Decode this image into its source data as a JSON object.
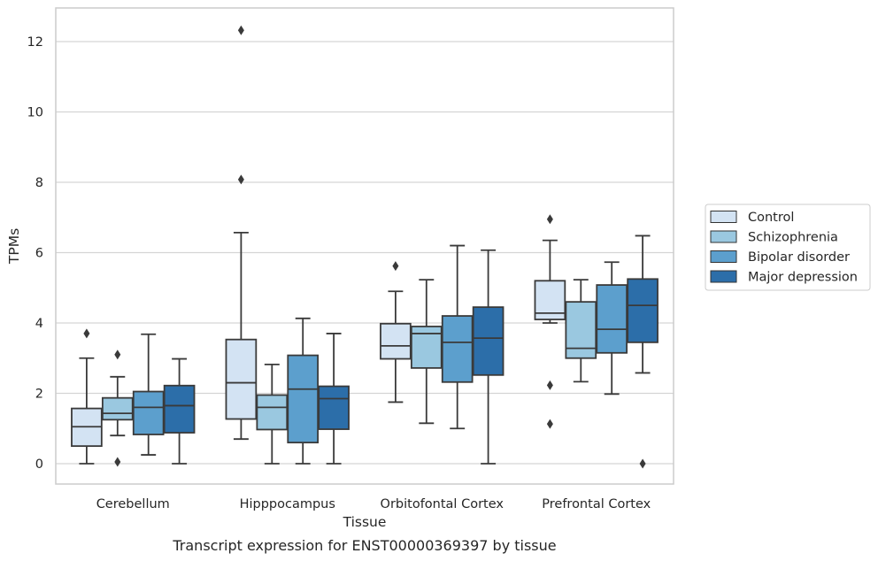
{
  "chart_data": {
    "type": "box",
    "caption": "Transcript expression for ENST00000369397 by tissue",
    "xlabel": "Tissue",
    "ylabel": "TPMs",
    "ylim": [
      -0.6,
      12.95
    ],
    "yticks": [
      0,
      2,
      4,
      6,
      8,
      10,
      12
    ],
    "grid": "horizontal",
    "legend_placement": "right",
    "categories": [
      "Cerebellum",
      "Hipppocampus",
      "Orbitofontal Cortex",
      "Prefrontal Cortex"
    ],
    "series": [
      {
        "name": "Control",
        "color": "#d3e3f3",
        "boxes": [
          {
            "whislo": 0.0,
            "q1": 0.5,
            "med": 1.05,
            "q3": 1.57,
            "whishi": 3.0,
            "fliers": [
              3.7
            ]
          },
          {
            "whislo": 0.7,
            "q1": 1.27,
            "med": 2.3,
            "q3": 3.53,
            "whishi": 6.57,
            "fliers": [
              8.08,
              12.32
            ]
          },
          {
            "whislo": 1.75,
            "q1": 2.98,
            "med": 3.35,
            "q3": 3.98,
            "whishi": 4.9,
            "fliers": [
              5.62
            ]
          },
          {
            "whislo": 4.0,
            "q1": 4.1,
            "med": 4.28,
            "q3": 5.2,
            "whishi": 6.35,
            "fliers": [
              6.95,
              2.23,
              1.13
            ]
          }
        ]
      },
      {
        "name": "Schizophrenia",
        "color": "#9ac8e0",
        "boxes": [
          {
            "whislo": 0.8,
            "q1": 1.25,
            "med": 1.43,
            "q3": 1.87,
            "whishi": 2.47,
            "fliers": [
              3.1,
              0.05
            ]
          },
          {
            "whislo": 0.0,
            "q1": 0.97,
            "med": 1.6,
            "q3": 1.95,
            "whishi": 2.82,
            "fliers": []
          },
          {
            "whislo": 1.15,
            "q1": 2.72,
            "med": 3.7,
            "q3": 3.9,
            "whishi": 5.23,
            "fliers": []
          },
          {
            "whislo": 2.33,
            "q1": 3.0,
            "med": 3.28,
            "q3": 4.6,
            "whishi": 5.23,
            "fliers": []
          }
        ]
      },
      {
        "name": "Bipolar disorder",
        "color": "#5c9fcd",
        "boxes": [
          {
            "whislo": 0.25,
            "q1": 0.83,
            "med": 1.6,
            "q3": 2.05,
            "whishi": 3.68,
            "fliers": []
          },
          {
            "whislo": 0.0,
            "q1": 0.6,
            "med": 2.12,
            "q3": 3.08,
            "whishi": 4.13,
            "fliers": []
          },
          {
            "whislo": 1.0,
            "q1": 2.32,
            "med": 3.45,
            "q3": 4.2,
            "whishi": 6.2,
            "fliers": []
          },
          {
            "whislo": 1.98,
            "q1": 3.15,
            "med": 3.82,
            "q3": 5.08,
            "whishi": 5.73,
            "fliers": []
          }
        ]
      },
      {
        "name": "Major depression",
        "color": "#2c6ea9",
        "boxes": [
          {
            "whislo": 0.0,
            "q1": 0.88,
            "med": 1.65,
            "q3": 2.22,
            "whishi": 2.98,
            "fliers": []
          },
          {
            "whislo": 0.0,
            "q1": 0.98,
            "med": 1.85,
            "q3": 2.2,
            "whishi": 3.7,
            "fliers": []
          },
          {
            "whislo": 0.0,
            "q1": 2.52,
            "med": 3.57,
            "q3": 4.45,
            "whishi": 6.07,
            "fliers": []
          },
          {
            "whislo": 2.58,
            "q1": 3.45,
            "med": 4.5,
            "q3": 5.25,
            "whishi": 6.48,
            "fliers": [
              0.0
            ]
          }
        ]
      }
    ]
  }
}
